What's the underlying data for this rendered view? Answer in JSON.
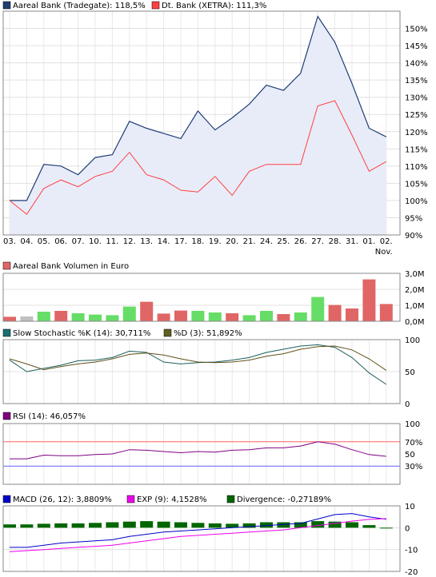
{
  "chart_data": [
    {
      "type": "area",
      "panel": "price",
      "categories": [
        "03.",
        "04.",
        "05.",
        "06.",
        "07.",
        "10.",
        "11.",
        "12.",
        "13.",
        "14.",
        "17.",
        "18.",
        "19.",
        "20.",
        "21.",
        "24.",
        "25.",
        "26.",
        "27.",
        "28.",
        "31.",
        "01.",
        "02."
      ],
      "x_sublabel": {
        "index": 22,
        "text": "Nov."
      },
      "yticks": [
        "150%",
        "145%",
        "140%",
        "135%",
        "130%",
        "125%",
        "120%",
        "115%",
        "110%",
        "105%",
        "100%",
        "95%",
        "90%"
      ],
      "ylim": [
        90,
        155
      ],
      "grid": true,
      "series": [
        {
          "name": "Aareal Bank (Tradegate): 118,5%",
          "color": "#203e74",
          "fill": "#e8ecf8",
          "values": [
            100,
            100,
            110.5,
            110,
            107.5,
            112.5,
            113.3,
            123,
            121,
            119.5,
            118,
            126,
            120.5,
            124,
            128,
            133.5,
            132,
            137,
            153.5,
            146,
            134,
            121,
            118.5
          ]
        },
        {
          "name": "Dt. Bank (XETRA): 111,3%",
          "color": "#ff4040",
          "values": [
            100,
            96,
            103.5,
            106,
            104,
            107,
            108.5,
            114,
            107.5,
            106,
            103,
            102.5,
            107,
            101.5,
            108.5,
            110.5,
            110.5,
            110.5,
            127.5,
            129,
            119,
            108.5,
            111.3
          ]
        }
      ]
    },
    {
      "type": "bar",
      "panel": "volume",
      "title": "Aareal Bank Volumen in Euro",
      "yticks": [
        "3,0M",
        "2,0M",
        "1,0M",
        "0,0M"
      ],
      "ylim": [
        0,
        3.0
      ],
      "values": [
        0.28,
        0.3,
        0.6,
        0.65,
        0.5,
        0.42,
        0.38,
        0.92,
        1.22,
        0.48,
        0.67,
        0.65,
        0.55,
        0.5,
        0.38,
        0.65,
        0.45,
        0.55,
        1.52,
        1.02,
        0.8,
        2.62,
        1.08
      ],
      "colors": [
        "#e06666",
        "#c0c0c0",
        "#66dd66",
        "#e06666",
        "#66dd66",
        "#66dd66",
        "#66dd66",
        "#66dd66",
        "#e06666",
        "#e06666",
        "#e06666",
        "#66dd66",
        "#66dd66",
        "#e06666",
        "#66dd66",
        "#66dd66",
        "#e06666",
        "#66dd66",
        "#66dd66",
        "#e06666",
        "#e06666",
        "#e06666",
        "#e06666"
      ]
    },
    {
      "type": "line",
      "panel": "stochastic",
      "yticks": [
        "100",
        "50",
        "0"
      ],
      "ylim": [
        0,
        100
      ],
      "series": [
        {
          "name": "Slow Stochastic %K (14): 30,711%",
          "color": "#1a5e5a",
          "legend_fill": "#1a7070",
          "values": [
            68,
            50,
            55,
            60,
            67,
            68,
            72,
            82,
            80,
            65,
            62,
            64,
            65,
            68,
            72,
            80,
            85,
            90,
            92,
            88,
            72,
            48,
            30
          ]
        },
        {
          "name": "%D (3): 51,892%",
          "color": "#605018",
          "legend_fill": "#606020",
          "values": [
            70,
            62,
            53,
            58,
            62,
            65,
            70,
            77,
            79,
            76,
            70,
            65,
            64,
            65,
            68,
            74,
            78,
            85,
            89,
            90,
            84,
            70,
            52
          ]
        }
      ]
    },
    {
      "type": "line",
      "panel": "rsi",
      "yticks": [
        "100",
        "70%",
        "50",
        "30%"
      ],
      "ylim": [
        0,
        100
      ],
      "reference_lines": [
        {
          "value": 70,
          "color": "#ff6060"
        },
        {
          "value": 30,
          "color": "#6060ff"
        }
      ],
      "series": [
        {
          "name": "RSI (14): 46,057%",
          "color": "#800080",
          "values": [
            42,
            42,
            48,
            47,
            47,
            49,
            50,
            57,
            56,
            54,
            52,
            54,
            53,
            56,
            57,
            60,
            60,
            63,
            70,
            66,
            57,
            49,
            46
          ]
        }
      ]
    },
    {
      "type": "bar",
      "panel": "macd",
      "yticks": [
        "10",
        "0",
        "-10",
        "-20"
      ],
      "ylim": [
        -20,
        10
      ],
      "series": [
        {
          "name": "MACD (26, 12): 3,8809%",
          "color": "#0000cc",
          "legend_fill": "#0000cc",
          "kind": "line",
          "values": [
            -9,
            -9,
            -8,
            -7,
            -6.5,
            -6,
            -5.5,
            -4,
            -3,
            -2,
            -1.5,
            -1,
            -0.5,
            0,
            0.5,
            1,
            1.5,
            2,
            4,
            6,
            6.5,
            5,
            3.9
          ]
        },
        {
          "name": "EXP (9): 4,1528%",
          "color": "#ee00ee",
          "legend_fill": "#ee00ee",
          "kind": "line",
          "values": [
            -11,
            -10.5,
            -10,
            -9.5,
            -9,
            -8.5,
            -8,
            -7,
            -6,
            -5,
            -4,
            -3.5,
            -3,
            -2.5,
            -2,
            -1.5,
            -1,
            0,
            1,
            2,
            3,
            3.8,
            4.15
          ]
        },
        {
          "name": "Divergence: -0,27189%",
          "color": "#006600",
          "legend_fill": "#006600",
          "kind": "bar",
          "values": [
            1.5,
            1.5,
            1.8,
            2,
            2,
            2.2,
            2.5,
            2.8,
            3,
            2.8,
            2.5,
            2.2,
            2,
            1.8,
            2,
            2.5,
            2.5,
            2.5,
            3,
            2.8,
            2.5,
            1.2,
            -0.27
          ]
        }
      ]
    }
  ]
}
